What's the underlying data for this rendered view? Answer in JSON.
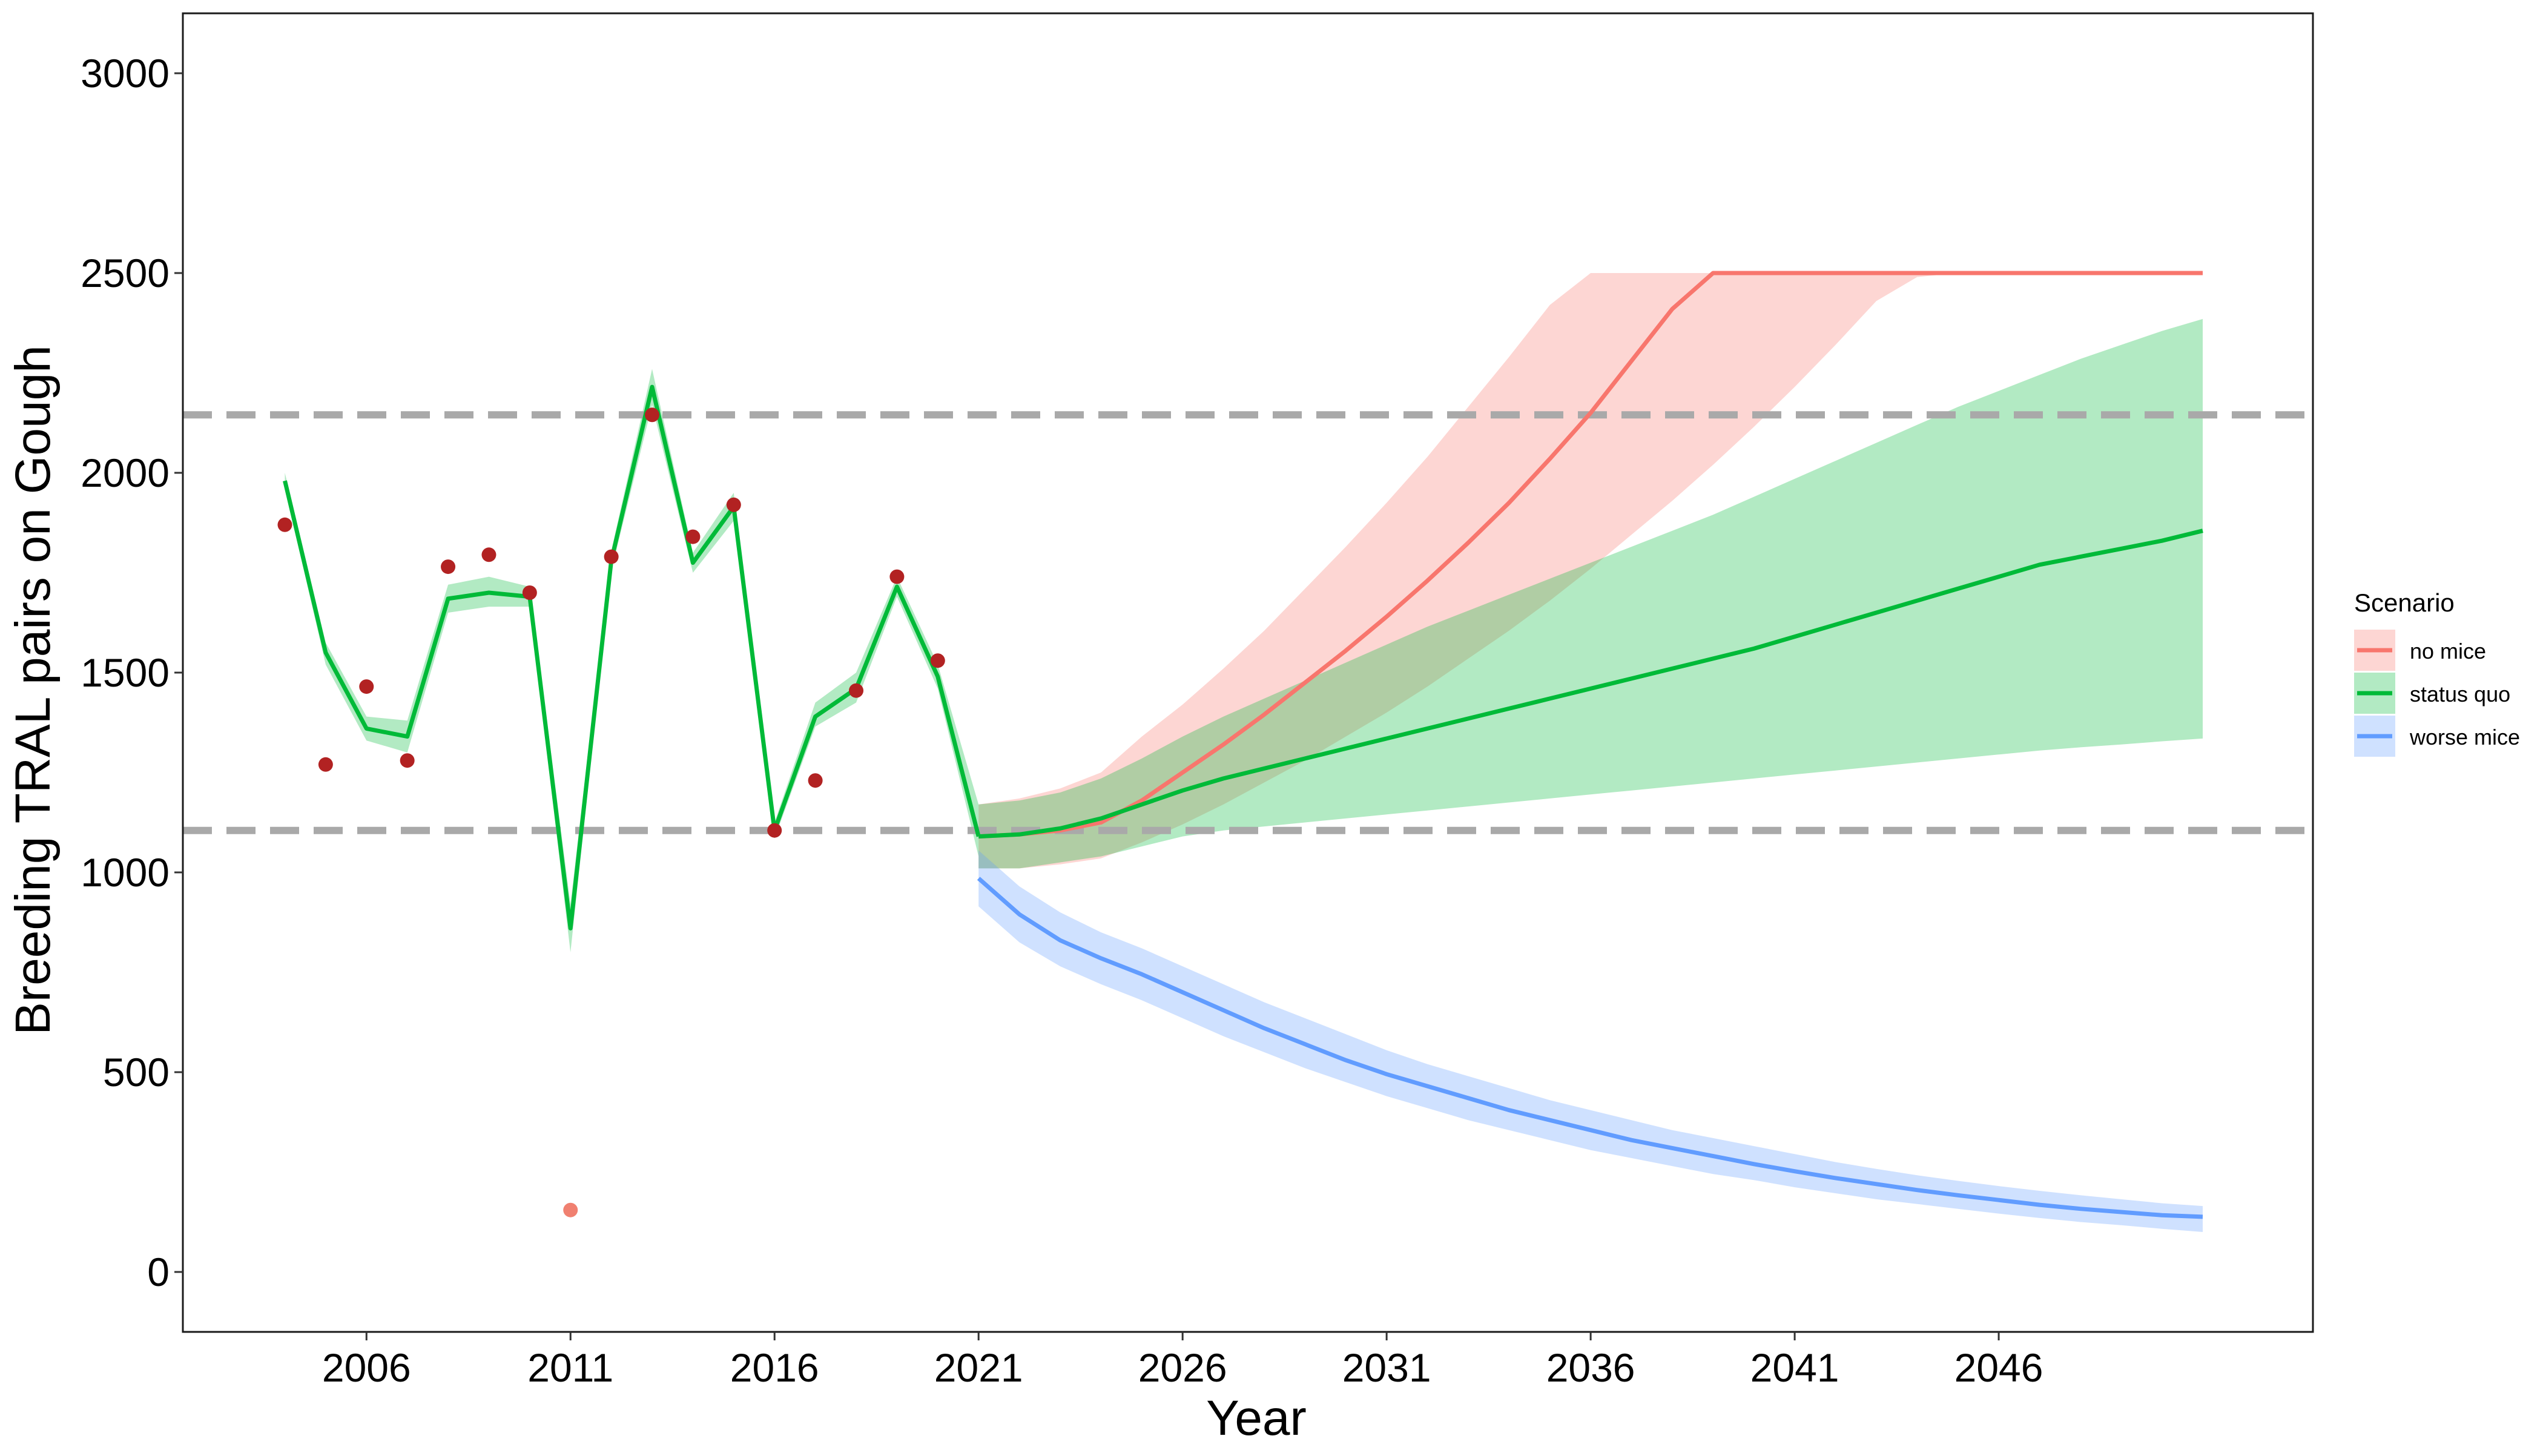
{
  "chart_data": {
    "type": "line",
    "title": "",
    "xlabel": "Year",
    "ylabel": "Breeding TRAL pairs on Gough",
    "xlim": [
      2001.5,
      2053.7
    ],
    "ylim": [
      -150,
      3150
    ],
    "x_ticks": [
      2006,
      2011,
      2016,
      2021,
      2026,
      2031,
      2036,
      2041,
      2046
    ],
    "y_ticks": [
      0,
      500,
      1000,
      1500,
      2000,
      2500,
      3000
    ],
    "grid": false,
    "reference_lines": [
      2145,
      1105
    ],
    "legend": {
      "title": "Scenario",
      "position": "right",
      "entries": [
        "no mice",
        "status quo",
        "worse mice"
      ]
    },
    "colors": {
      "no_mice": "#F8766D",
      "status_quo": "#00BA38",
      "worse_mice": "#619CFF",
      "observed_points": "#B22222",
      "outlier_point": "#F08070",
      "reference_line": "#A9A9A9"
    },
    "observed_counts": {
      "x": [
        2004,
        2005,
        2006,
        2007,
        2008,
        2009,
        2010,
        2012,
        2013,
        2014,
        2015,
        2016,
        2017,
        2018,
        2019,
        2020
      ],
      "y": [
        1870,
        1270,
        1465,
        1280,
        1765,
        1795,
        1700,
        1790,
        2145,
        1840,
        1920,
        1105,
        1230,
        1455,
        1740,
        1530
      ]
    },
    "outlier_count": {
      "x": 2011,
      "y": 155
    },
    "fitted_past": {
      "x": [
        2004,
        2005,
        2006,
        2007,
        2008,
        2009,
        2010,
        2011,
        2012,
        2013,
        2014,
        2015,
        2016,
        2017,
        2018,
        2019,
        2020,
        2021
      ],
      "y": [
        1980,
        1550,
        1360,
        1340,
        1685,
        1700,
        1690,
        860,
        1780,
        2215,
        1775,
        1915,
        1105,
        1390,
        1460,
        1715,
        1490,
        1090
      ],
      "lower": [
        1960,
        1520,
        1330,
        1300,
        1650,
        1665,
        1665,
        800,
        1755,
        2170,
        1750,
        1880,
        1085,
        1365,
        1425,
        1690,
        1460,
        1040
      ],
      "upper": [
        2000,
        1575,
        1390,
        1380,
        1720,
        1740,
        1715,
        920,
        1805,
        2260,
        1800,
        1950,
        1125,
        1425,
        1500,
        1740,
        1520,
        1170
      ]
    },
    "series": [
      {
        "name": "no mice",
        "x": [
          2021,
          2022,
          2023,
          2024,
          2025,
          2026,
          2027,
          2028,
          2029,
          2030,
          2031,
          2032,
          2033,
          2034,
          2035,
          2036,
          2037,
          2038,
          2039,
          2040,
          2041,
          2042,
          2043,
          2044,
          2045,
          2046,
          2047,
          2048,
          2049,
          2050,
          2051
        ],
        "y": [
          1090,
          1095,
          1105,
          1125,
          1180,
          1250,
          1320,
          1395,
          1475,
          1555,
          1640,
          1730,
          1825,
          1925,
          2035,
          2150,
          2280,
          2410,
          2500,
          2500,
          2500,
          2500,
          2500,
          2500,
          2500,
          2500,
          2500,
          2500,
          2500,
          2500,
          2500
        ],
        "lower": [
          1010,
          1010,
          1020,
          1035,
          1075,
          1120,
          1170,
          1225,
          1280,
          1340,
          1400,
          1465,
          1535,
          1605,
          1680,
          1760,
          1845,
          1930,
          2020,
          2115,
          2215,
          2320,
          2430,
          2490,
          2500,
          2500,
          2500,
          2500,
          2500,
          2500,
          2500
        ],
        "upper": [
          1170,
          1185,
          1210,
          1250,
          1340,
          1420,
          1510,
          1605,
          1710,
          1815,
          1925,
          2040,
          2165,
          2290,
          2420,
          2500,
          2500,
          2500,
          2500,
          2500,
          2500,
          2500,
          2500,
          2500,
          2500,
          2500,
          2500,
          2500,
          2500,
          2500,
          2500
        ]
      },
      {
        "name": "status quo",
        "x": [
          2021,
          2022,
          2023,
          2024,
          2025,
          2026,
          2027,
          2028,
          2029,
          2030,
          2031,
          2032,
          2033,
          2034,
          2035,
          2036,
          2037,
          2038,
          2039,
          2040,
          2041,
          2042,
          2043,
          2044,
          2045,
          2046,
          2047,
          2048,
          2049,
          2050,
          2051
        ],
        "y": [
          1090,
          1095,
          1110,
          1135,
          1170,
          1205,
          1235,
          1260,
          1285,
          1310,
          1335,
          1360,
          1385,
          1410,
          1435,
          1460,
          1485,
          1510,
          1535,
          1560,
          1590,
          1620,
          1650,
          1680,
          1710,
          1740,
          1770,
          1790,
          1810,
          1830,
          1855
        ],
        "lower": [
          1010,
          1010,
          1025,
          1040,
          1065,
          1090,
          1105,
          1115,
          1125,
          1135,
          1145,
          1155,
          1165,
          1175,
          1185,
          1195,
          1205,
          1215,
          1225,
          1235,
          1245,
          1255,
          1265,
          1275,
          1285,
          1295,
          1305,
          1313,
          1320,
          1328,
          1335
        ],
        "upper": [
          1170,
          1180,
          1200,
          1235,
          1285,
          1340,
          1390,
          1435,
          1480,
          1525,
          1570,
          1615,
          1655,
          1695,
          1735,
          1775,
          1815,
          1855,
          1895,
          1940,
          1985,
          2030,
          2075,
          2120,
          2165,
          2205,
          2245,
          2285,
          2320,
          2355,
          2385
        ]
      },
      {
        "name": "worse mice",
        "x": [
          2021,
          2022,
          2023,
          2024,
          2025,
          2026,
          2027,
          2028,
          2029,
          2030,
          2031,
          2032,
          2033,
          2034,
          2035,
          2036,
          2037,
          2038,
          2039,
          2040,
          2041,
          2042,
          2043,
          2044,
          2045,
          2046,
          2047,
          2048,
          2049,
          2050,
          2051
        ],
        "y": [
          985,
          895,
          830,
          785,
          745,
          700,
          655,
          610,
          570,
          530,
          495,
          465,
          435,
          405,
          380,
          355,
          330,
          310,
          290,
          270,
          252,
          235,
          220,
          205,
          192,
          180,
          168,
          158,
          150,
          142,
          138
        ],
        "lower": [
          915,
          825,
          765,
          720,
          680,
          635,
          590,
          550,
          510,
          475,
          440,
          410,
          380,
          355,
          330,
          305,
          285,
          265,
          245,
          230,
          212,
          197,
          182,
          170,
          158,
          146,
          135,
          125,
          117,
          108,
          100
        ],
        "upper": [
          1055,
          965,
          900,
          850,
          810,
          765,
          720,
          675,
          635,
          595,
          555,
          520,
          490,
          460,
          430,
          405,
          380,
          355,
          335,
          315,
          295,
          275,
          258,
          242,
          228,
          215,
          203,
          192,
          182,
          172,
          165
        ]
      }
    ]
  }
}
